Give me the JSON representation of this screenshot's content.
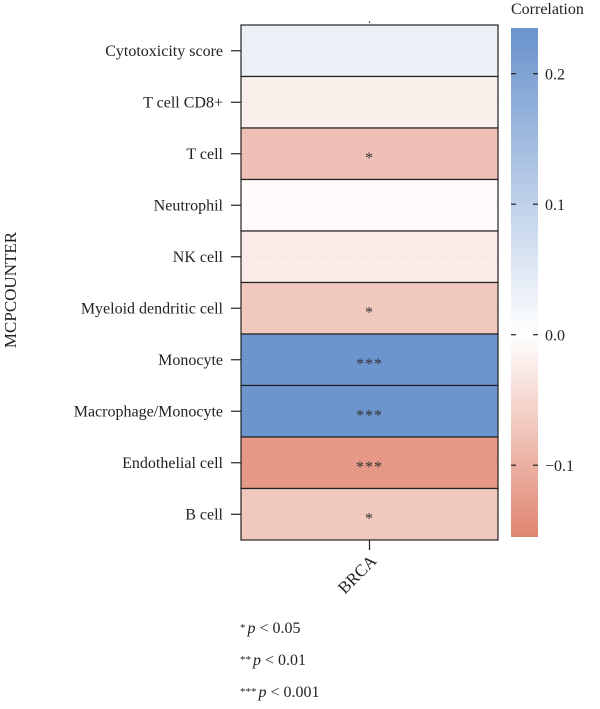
{
  "chart_data": {
    "type": "heatmap",
    "title": "",
    "ylabel": "MCPCOUNTER",
    "xlabel": "",
    "x_categories": [
      "BRCA"
    ],
    "y_categories": [
      "Cytotoxicity score",
      "T cell CD8+",
      "T cell",
      "Neutrophil",
      "NK cell",
      "Myeloid dendritic cell",
      "Monocyte",
      "Macrophage/Monocyte",
      "Endothelial cell",
      "B cell"
    ],
    "values": [
      0.03,
      -0.02,
      -0.08,
      -0.005,
      -0.025,
      -0.07,
      0.23,
      0.23,
      -0.13,
      -0.07
    ],
    "significance": [
      "",
      "",
      "*",
      "",
      "",
      "*",
      "***",
      "***",
      "***",
      "*"
    ],
    "colorbar": {
      "label": "Correlation",
      "min": -0.155,
      "max": 0.235,
      "ticks": [
        0.2,
        0.1,
        0.0,
        -0.1
      ],
      "tick_labels": [
        "0.2",
        "0.1",
        "0.0",
        "−0.1"
      ],
      "colors": {
        "negative": "#e0856f",
        "zero": "#ffffff",
        "positive": "#6993cc"
      }
    },
    "legend_position": "right",
    "grid": false
  },
  "notes": [
    {
      "stars": "*",
      "p_symbol": "p",
      "text": " < 0.05"
    },
    {
      "stars": "**",
      "p_symbol": "p",
      "text": " < 0.01"
    },
    {
      "stars": "***",
      "p_symbol": "p",
      "text": " < 0.001"
    }
  ]
}
